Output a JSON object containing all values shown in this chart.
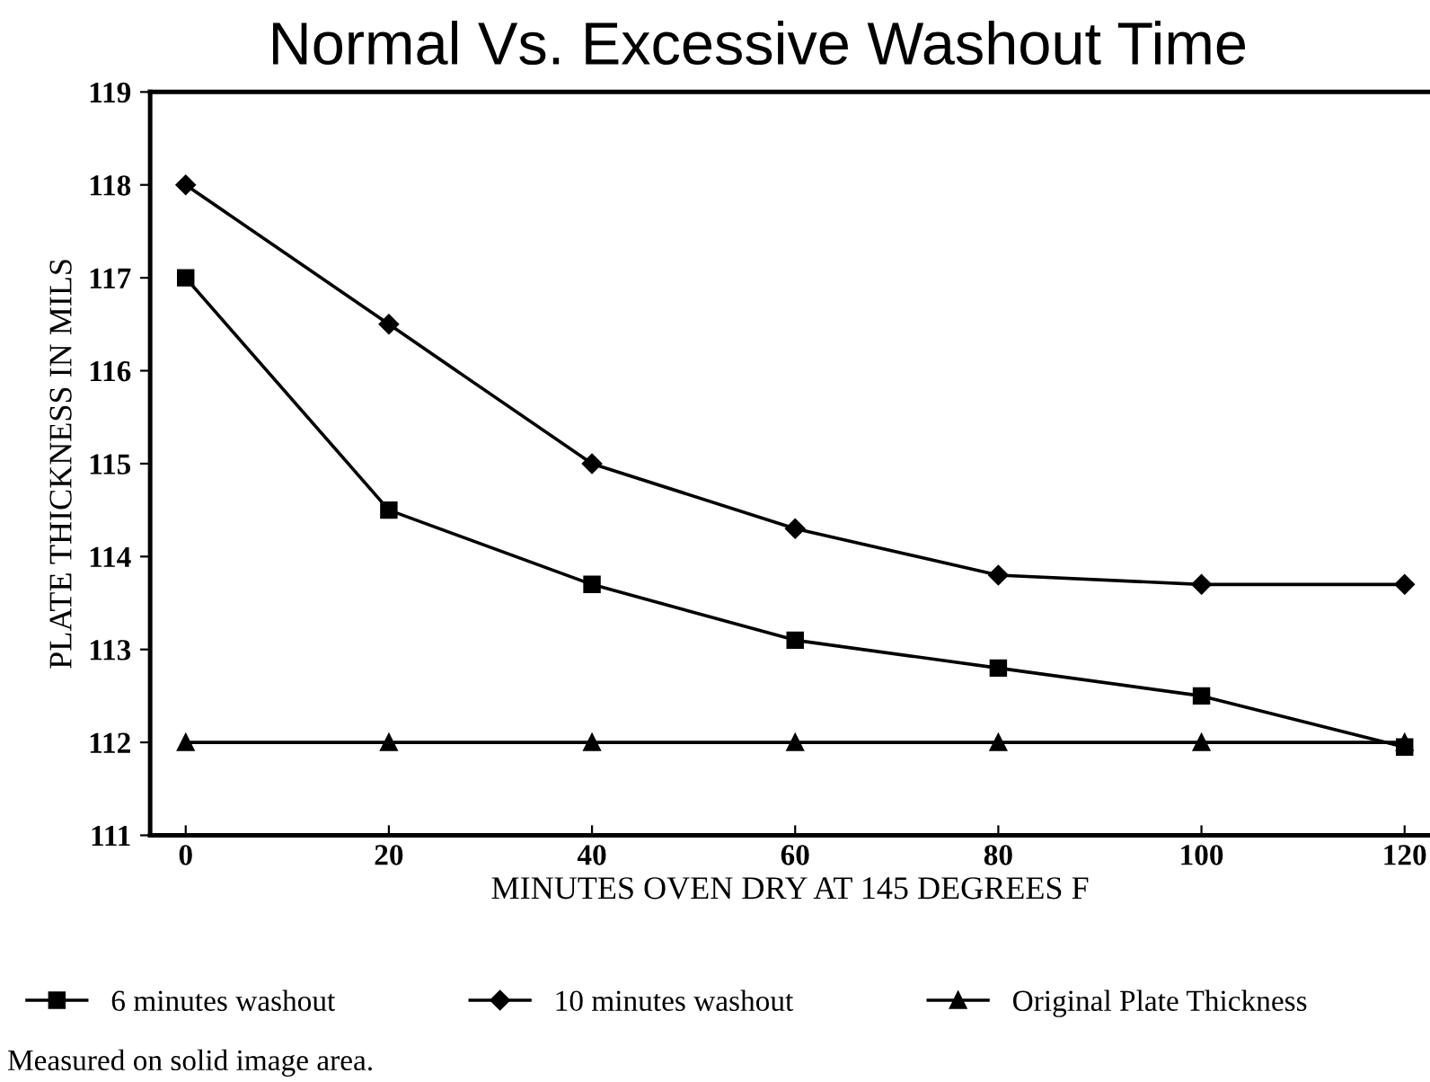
{
  "chart_data": {
    "type": "line",
    "title": "Normal Vs. Excessive Washout Time",
    "xlabel": "MINUTES OVEN DRY AT 145 DEGREES F",
    "ylabel": "PLATE THICKNESS IN MILS",
    "x": [
      0,
      20,
      40,
      60,
      80,
      100,
      120
    ],
    "series": [
      {
        "name": "6 minutes washout",
        "color": "#000000",
        "marker": "square",
        "values": [
          117.0,
          114.5,
          113.7,
          113.1,
          112.8,
          112.5,
          111.95
        ]
      },
      {
        "name": "10 minutes washout",
        "color": "#000000",
        "marker": "diamond",
        "values": [
          118.0,
          116.5,
          115.0,
          114.3,
          113.8,
          113.7,
          113.7
        ]
      },
      {
        "name": "Original Plate Thickness",
        "color": "#000000",
        "marker": "triangle",
        "values": [
          112,
          112,
          112,
          112,
          112,
          112,
          112
        ]
      }
    ],
    "xlim": [
      -3.5,
      122.5
    ],
    "xticks": [
      0,
      20,
      40,
      60,
      80,
      100,
      120
    ],
    "ylim": [
      111,
      119
    ],
    "yticks": [
      111,
      112,
      113,
      114,
      115,
      116,
      117,
      118,
      119
    ],
    "grid": false,
    "legend": "bottom",
    "line_style": "solid",
    "annotations": [
      "Measured on solid image area."
    ]
  }
}
